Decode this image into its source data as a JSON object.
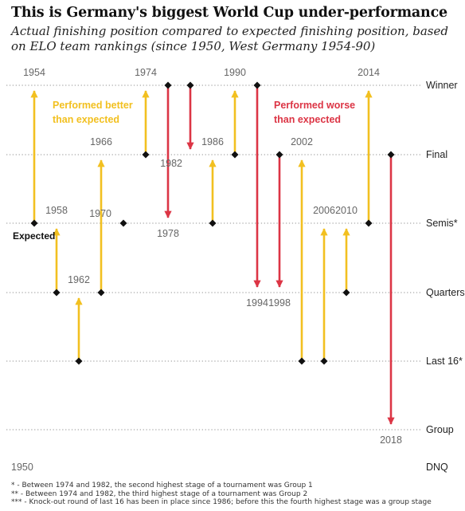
{
  "title": "This is Germany's biggest World Cup under-performance",
  "subtitle": "Actual finishing position compared to expected finishing position, based on ELO team rankings (since 1950, West Germany 1954-90)",
  "chart_data": {
    "type": "arrow-chart",
    "stages": [
      "DNQ",
      "Group",
      "Last 16*",
      "Quarters",
      "Semis*",
      "Final",
      "Winner"
    ],
    "better_label": "Performed better than expected",
    "worse_label": "Performed worse than expected",
    "expected_label": "Expected",
    "colors": {
      "better": "#f2c020",
      "worse": "#dc3545",
      "grid": "#aaaaaa",
      "text": "#333333",
      "year": "#666666"
    },
    "editions": [
      {
        "year": "1950",
        "expected": "DNQ",
        "actual": "DNQ"
      },
      {
        "year": "1954",
        "expected": "Semis*",
        "actual": "Winner"
      },
      {
        "year": "1958",
        "expected": "Quarters",
        "actual": "Semis*"
      },
      {
        "year": "1962",
        "expected": "Last 16*",
        "actual": "Quarters"
      },
      {
        "year": "1966",
        "expected": "Quarters",
        "actual": "Final"
      },
      {
        "year": "1970",
        "expected": "Semis*",
        "actual": "Semis*"
      },
      {
        "year": "1974",
        "expected": "Final",
        "actual": "Winner"
      },
      {
        "year": "1978",
        "expected": "Winner",
        "actual": "Semis*"
      },
      {
        "year": "1982",
        "expected": "Winner",
        "actual": "Final"
      },
      {
        "year": "1986",
        "expected": "Semis*",
        "actual": "Final"
      },
      {
        "year": "1990",
        "expected": "Final",
        "actual": "Winner"
      },
      {
        "year": "1994",
        "expected": "Winner",
        "actual": "Quarters"
      },
      {
        "year": "1998",
        "expected": "Final",
        "actual": "Quarters"
      },
      {
        "year": "2002",
        "expected": "Last 16*",
        "actual": "Final"
      },
      {
        "year": "2006",
        "expected": "Last 16*",
        "actual": "Semis*"
      },
      {
        "year": "2010",
        "expected": "Quarters",
        "actual": "Semis*"
      },
      {
        "year": "2014",
        "expected": "Semis*",
        "actual": "Winner"
      },
      {
        "year": "2018",
        "expected": "Final",
        "actual": "Group"
      }
    ]
  },
  "footnotes": [
    "* - Between 1974 and 1982, the second highest stage of a tournament was Group 1",
    "** - Between 1974 and 1982, the third highest stage of a tournament was Group 2",
    "*** - Knock-out round of last 16 has been in place since 1986; before this the fourth highest stage was a group stage"
  ]
}
